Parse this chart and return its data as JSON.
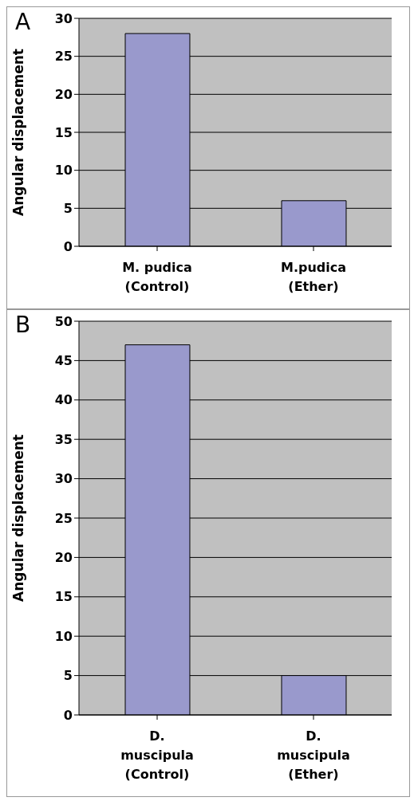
{
  "chart_data": [
    {
      "type": "bar",
      "title": "A",
      "ylabel": "Angular displacement",
      "categories": [
        "M. pudica (Control)",
        "M.pudica (Ether)"
      ],
      "values": [
        28,
        6
      ],
      "color": "#9999cc",
      "ylim": [
        0,
        30
      ],
      "yticks": [
        0,
        5,
        10,
        15,
        20,
        25,
        30
      ],
      "grid": "y"
    },
    {
      "type": "bar",
      "title": "B",
      "ylabel": "Angular displacement",
      "categories": [
        "D. muscipula (Control)",
        "D. muscipula (Ether)"
      ],
      "values": [
        47,
        5
      ],
      "color": "#9999cc",
      "ylim": [
        0,
        50
      ],
      "yticks": [
        0,
        5,
        10,
        15,
        20,
        25,
        30,
        35,
        40,
        45,
        50
      ],
      "grid": "y"
    }
  ]
}
